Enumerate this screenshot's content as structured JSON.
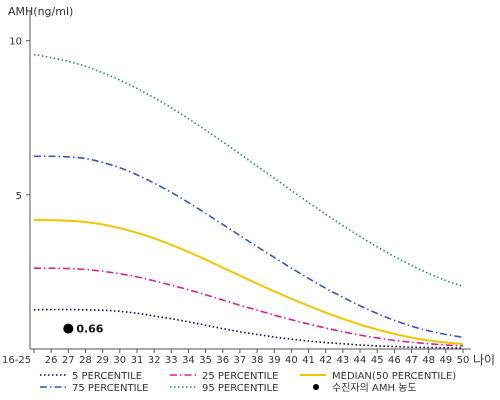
{
  "chart_data": {
    "type": "line",
    "ylabel": "AMH(ng/ml)",
    "xlabel": "나이",
    "ylim": [
      0,
      10.8
    ],
    "yticks": [
      5,
      10
    ],
    "categories": [
      "16-25",
      "26",
      "27",
      "28",
      "29",
      "30",
      "31",
      "32",
      "33",
      "34",
      "35",
      "36",
      "37",
      "38",
      "39",
      "40",
      "41",
      "42",
      "43",
      "44",
      "45",
      "46",
      "47",
      "48",
      "49",
      "50"
    ],
    "series": [
      {
        "name": "5 PERCENTILE",
        "color": "#000080",
        "dash": "dotted",
        "values": [
          1.27,
          1.28,
          1.28,
          1.27,
          1.26,
          1.22,
          1.16,
          1.07,
          0.98,
          0.88,
          0.77,
          0.66,
          0.56,
          0.47,
          0.39,
          0.32,
          0.26,
          0.21,
          0.17,
          0.13,
          0.1,
          0.08,
          0.06,
          0.05,
          0.04,
          0.03
        ]
      },
      {
        "name": "75 PERCENTILE",
        "color": "#3355cc",
        "dash": "dashdot",
        "values": [
          6.25,
          6.25,
          6.23,
          6.18,
          6.05,
          5.88,
          5.65,
          5.38,
          5.08,
          4.75,
          4.4,
          4.04,
          3.68,
          3.32,
          2.97,
          2.62,
          2.29,
          1.97,
          1.68,
          1.4,
          1.15,
          0.93,
          0.74,
          0.59,
          0.47,
          0.38
        ]
      },
      {
        "name": "25 PERCENTILE",
        "color": "#e0208a",
        "dash": "dashdot",
        "values": [
          2.62,
          2.62,
          2.61,
          2.58,
          2.52,
          2.44,
          2.34,
          2.21,
          2.07,
          1.92,
          1.76,
          1.59,
          1.42,
          1.26,
          1.1,
          0.95,
          0.81,
          0.68,
          0.56,
          0.45,
          0.36,
          0.28,
          0.22,
          0.17,
          0.13,
          0.1
        ]
      },
      {
        "name": "95 PERCENTILE",
        "color": "#2e8b57",
        "dash": "dotted",
        "values": [
          9.55,
          9.45,
          9.33,
          9.17,
          8.96,
          8.72,
          8.45,
          8.15,
          7.82,
          7.47,
          7.1,
          6.72,
          6.33,
          5.93,
          5.54,
          5.14,
          4.75,
          4.37,
          4.0,
          3.65,
          3.31,
          3.0,
          2.71,
          2.45,
          2.22,
          2.03
        ]
      },
      {
        "name": "MEDIAN(50 PERCENTILE)",
        "color": "#f2c500",
        "dash": "solid",
        "values": [
          4.18,
          4.18,
          4.16,
          4.12,
          4.04,
          3.92,
          3.77,
          3.59,
          3.38,
          3.15,
          2.9,
          2.64,
          2.38,
          2.12,
          1.87,
          1.63,
          1.4,
          1.18,
          0.98,
          0.79,
          0.63,
          0.49,
          0.37,
          0.28,
          0.21,
          0.16
        ]
      }
    ],
    "legend": [
      {
        "label": "5 PERCENTILE",
        "series": 0
      },
      {
        "label": "25 PERCENTILE",
        "series": 2
      },
      {
        "label": "MEDIAN(50 PERCENTILE)",
        "series": 4
      },
      {
        "label": "75 PERCENTILE",
        "series": 1
      },
      {
        "label": "95 PERCENTILE",
        "series": 3
      },
      {
        "label": "수진자의 AMH 농도",
        "marker": "dot"
      }
    ],
    "highlight_point": {
      "x": "27",
      "y": 0.66,
      "label": "0.66",
      "color": "#000000"
    }
  }
}
